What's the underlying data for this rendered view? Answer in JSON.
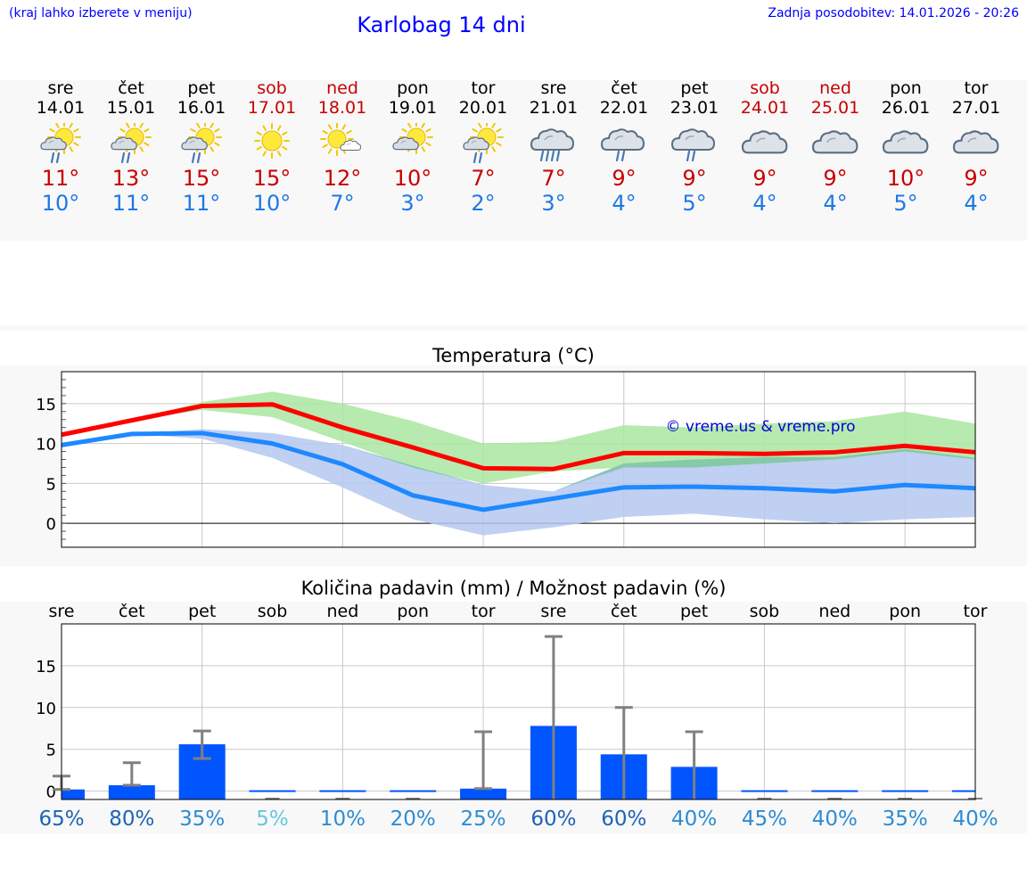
{
  "header": {
    "note": "(kraj lahko izberete v meniju)",
    "title": "Karlobag 14 dni",
    "updated": "Zadnja posodobitev: 14.01.2026 - 20:26"
  },
  "days": [
    {
      "name": "sre",
      "date": "14.01",
      "weekend": false,
      "icon": "sun-cloud-rain",
      "max": "11°",
      "min": "10°"
    },
    {
      "name": "čet",
      "date": "15.01",
      "weekend": false,
      "icon": "sun-cloud-rain",
      "max": "13°",
      "min": "11°"
    },
    {
      "name": "pet",
      "date": "16.01",
      "weekend": false,
      "icon": "sun-cloud-rain",
      "max": "15°",
      "min": "11°"
    },
    {
      "name": "sob",
      "date": "17.01",
      "weekend": true,
      "icon": "sun",
      "max": "15°",
      "min": "10°"
    },
    {
      "name": "ned",
      "date": "18.01",
      "weekend": true,
      "icon": "sun-small-cloud",
      "max": "12°",
      "min": "7°"
    },
    {
      "name": "pon",
      "date": "19.01",
      "weekend": false,
      "icon": "sun-cloud",
      "max": "10°",
      "min": "3°"
    },
    {
      "name": "tor",
      "date": "20.01",
      "weekend": false,
      "icon": "sun-cloud-rain",
      "max": "7°",
      "min": "2°"
    },
    {
      "name": "sre",
      "date": "21.01",
      "weekend": false,
      "icon": "cloud-heavy-rain",
      "max": "7°",
      "min": "3°"
    },
    {
      "name": "čet",
      "date": "22.01",
      "weekend": false,
      "icon": "cloud-rain",
      "max": "9°",
      "min": "4°"
    },
    {
      "name": "pet",
      "date": "23.01",
      "weekend": false,
      "icon": "cloud-rain",
      "max": "9°",
      "min": "5°"
    },
    {
      "name": "sob",
      "date": "24.01",
      "weekend": true,
      "icon": "cloud",
      "max": "9°",
      "min": "4°"
    },
    {
      "name": "ned",
      "date": "25.01",
      "weekend": true,
      "icon": "cloud",
      "max": "9°",
      "min": "4°"
    },
    {
      "name": "pon",
      "date": "26.01",
      "weekend": false,
      "icon": "cloud",
      "max": "10°",
      "min": "5°"
    },
    {
      "name": "tor",
      "date": "27.01",
      "weekend": false,
      "icon": "cloud",
      "max": "9°",
      "min": "4°"
    }
  ],
  "colors": {
    "accent": "#0000ff",
    "max_line": "#ff0000",
    "min_line": "#1e88ff",
    "max_band": "#aae6a0",
    "min_band": "#b4c8f0",
    "bar": "#0055ff",
    "whisker": "#808080"
  },
  "chart_data": [
    {
      "type": "line",
      "title": "Temperatura (°C)",
      "watermark": "© vreme.us & vreme.pro",
      "x": [
        0,
        1,
        2,
        3,
        4,
        5,
        6,
        7,
        8,
        9,
        10,
        11,
        12,
        13
      ],
      "ylim": [
        -3,
        19
      ],
      "yticks": [
        0,
        5,
        10,
        15
      ],
      "grid": true,
      "series": [
        {
          "name": "max",
          "values": [
            11.1,
            12.9,
            14.7,
            14.9,
            12.0,
            9.5,
            6.9,
            6.8,
            8.8,
            8.8,
            8.7,
            8.9,
            9.7,
            8.9
          ],
          "band_low": [
            11.1,
            12.9,
            14.2,
            13.3,
            10.2,
            7.0,
            5.0,
            6.5,
            7.0,
            7.0,
            7.5,
            8.0,
            9.0,
            8.0
          ],
          "band_high": [
            11.1,
            12.9,
            15.2,
            16.5,
            15.0,
            12.8,
            10.0,
            10.2,
            12.3,
            12.0,
            12.5,
            12.8,
            14.0,
            12.5
          ]
        },
        {
          "name": "min",
          "values": [
            9.8,
            11.2,
            11.3,
            10.0,
            7.4,
            3.5,
            1.7,
            3.1,
            4.5,
            4.6,
            4.4,
            4.0,
            4.8,
            4.4
          ],
          "band_low": [
            9.8,
            11.2,
            10.6,
            8.2,
            4.5,
            0.5,
            -1.5,
            -0.5,
            0.8,
            1.2,
            0.5,
            0.0,
            0.5,
            0.8
          ],
          "band_high": [
            9.8,
            11.2,
            11.8,
            11.3,
            9.8,
            7.2,
            4.8,
            4.0,
            7.5,
            8.0,
            8.3,
            8.3,
            9.3,
            8.2
          ]
        }
      ]
    },
    {
      "type": "bar",
      "title": "Količina padavin (mm) / Možnost padavin (%)",
      "categories": [
        "sre",
        "čet",
        "pet",
        "sob",
        "ned",
        "pon",
        "tor",
        "sre",
        "čet",
        "pet",
        "sob",
        "ned",
        "pon",
        "tor"
      ],
      "values": [
        0.2,
        0.7,
        5.6,
        0,
        0,
        0,
        0.3,
        7.8,
        4.4,
        2.9,
        0,
        0,
        0,
        0
      ],
      "err_low": [
        0.2,
        0.7,
        3.9,
        0,
        0,
        0,
        0.3,
        0,
        0,
        0,
        0,
        0,
        0,
        0
      ],
      "err_high": [
        1.8,
        3.4,
        7.2,
        0,
        0,
        0,
        7.1,
        18.5,
        10.0,
        7.1,
        0,
        0,
        0,
        0
      ],
      "ylim": [
        -1,
        20
      ],
      "yticks": [
        0,
        5,
        10,
        15
      ],
      "chance": [
        "65%",
        "80%",
        "35%",
        "5%",
        "10%",
        "20%",
        "25%",
        "60%",
        "60%",
        "40%",
        "45%",
        "40%",
        "35%",
        "40%"
      ],
      "chance_colors": [
        "#1e64b4",
        "#1e64b4",
        "#2d8cd2",
        "#64c8dc",
        "#2d8cd2",
        "#2d8cd2",
        "#2d8cd2",
        "#1e64b4",
        "#1e64b4",
        "#2d8cd2",
        "#2d8cd2",
        "#2d8cd2",
        "#2d8cd2",
        "#2d8cd2"
      ],
      "grid": true
    }
  ]
}
